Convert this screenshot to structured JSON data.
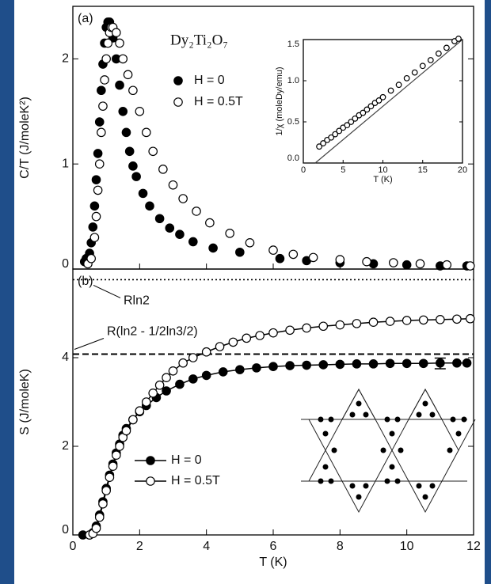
{
  "chart_data": [
    {
      "type": "scatter",
      "panel_label": "(a)",
      "title": "Dy₂Ti₂O₇",
      "ylabel": "C/T (J/moleK²)",
      "xlim": [
        0,
        12
      ],
      "ylim": [
        0,
        2.5
      ],
      "yticks": [
        0,
        1,
        2
      ],
      "series": [
        {
          "name": "H = 0",
          "marker": "filled",
          "color": "#000000",
          "x": [
            0.35,
            0.4,
            0.5,
            0.55,
            0.6,
            0.65,
            0.7,
            0.75,
            0.8,
            0.85,
            0.9,
            0.95,
            1.0,
            1.05,
            1.1,
            1.15,
            1.2,
            1.3,
            1.4,
            1.5,
            1.6,
            1.7,
            1.8,
            1.9,
            2.1,
            2.3,
            2.6,
            2.9,
            3.2,
            3.6,
            4.2,
            5.0,
            6.2,
            7.0,
            8.0,
            9.0,
            10.0,
            11.0,
            11.8
          ],
          "values": [
            0.07,
            0.1,
            0.15,
            0.25,
            0.4,
            0.6,
            0.85,
            1.1,
            1.4,
            1.7,
            1.95,
            2.15,
            2.3,
            2.35,
            2.35,
            2.3,
            2.2,
            2.0,
            1.75,
            1.5,
            1.3,
            1.12,
            0.98,
            0.88,
            0.72,
            0.6,
            0.48,
            0.39,
            0.33,
            0.26,
            0.2,
            0.16,
            0.1,
            0.08,
            0.06,
            0.05,
            0.04,
            0.03,
            0.03
          ]
        },
        {
          "name": "H = 0.5T",
          "marker": "open",
          "color": "#000000",
          "x": [
            0.45,
            0.55,
            0.65,
            0.7,
            0.75,
            0.8,
            0.85,
            0.9,
            0.95,
            1.0,
            1.05,
            1.1,
            1.15,
            1.2,
            1.3,
            1.4,
            1.5,
            1.65,
            1.8,
            2.0,
            2.2,
            2.4,
            2.7,
            3.0,
            3.3,
            3.7,
            4.1,
            4.7,
            5.3,
            6.0,
            6.6,
            7.2,
            8.0,
            8.8,
            9.6,
            10.4,
            11.2,
            11.9
          ],
          "values": [
            0.05,
            0.1,
            0.3,
            0.5,
            0.75,
            1.0,
            1.3,
            1.55,
            1.8,
            2.0,
            2.15,
            2.25,
            2.3,
            2.3,
            2.25,
            2.15,
            2.0,
            1.85,
            1.7,
            1.5,
            1.3,
            1.12,
            0.95,
            0.8,
            0.67,
            0.55,
            0.44,
            0.34,
            0.25,
            0.18,
            0.14,
            0.11,
            0.09,
            0.07,
            0.06,
            0.05,
            0.04,
            0.03
          ]
        }
      ]
    },
    {
      "type": "scatter",
      "panel_label": "(b)",
      "xlabel": "T (K)",
      "ylabel": "S (J/moleK)",
      "lines": true,
      "xlim": [
        0,
        12
      ],
      "xticks": [
        0,
        2,
        4,
        6,
        8,
        10,
        12
      ],
      "ylim": [
        0,
        6
      ],
      "yticks": [
        0,
        2,
        4
      ],
      "hlines": [
        {
          "y": 5.76,
          "style": "dotted",
          "label": "Rln2"
        },
        {
          "y": 4.08,
          "style": "dashed",
          "label": "R(ln2 - 1/2ln3/2)"
        }
      ],
      "error_bar": {
        "x": 11,
        "y": 3.87,
        "error": 0.12
      },
      "series": [
        {
          "name": "H = 0",
          "marker": "filled",
          "color": "#000000",
          "x": [
            0.3,
            0.5,
            0.6,
            0.7,
            0.8,
            0.9,
            1.0,
            1.1,
            1.2,
            1.3,
            1.4,
            1.5,
            1.6,
            1.8,
            2.0,
            2.2,
            2.5,
            2.8,
            3.2,
            3.6,
            4.0,
            4.5,
            5.0,
            5.5,
            6.0,
            6.5,
            7.0,
            7.5,
            8.0,
            8.5,
            9.0,
            9.5,
            10.0,
            10.5,
            11.0,
            11.5,
            11.8
          ],
          "values": [
            0,
            0,
            0.05,
            0.2,
            0.45,
            0.75,
            1.05,
            1.35,
            1.6,
            1.85,
            2.05,
            2.25,
            2.4,
            2.6,
            2.78,
            2.92,
            3.1,
            3.25,
            3.4,
            3.52,
            3.6,
            3.68,
            3.73,
            3.77,
            3.8,
            3.82,
            3.83,
            3.84,
            3.85,
            3.86,
            3.86,
            3.87,
            3.87,
            3.87,
            3.88,
            3.88,
            3.88
          ]
        },
        {
          "name": "H = 0.5T",
          "marker": "open",
          "color": "#000000",
          "x": [
            0.5,
            0.6,
            0.7,
            0.8,
            0.9,
            1.0,
            1.1,
            1.2,
            1.3,
            1.4,
            1.5,
            1.6,
            1.8,
            2.0,
            2.2,
            2.4,
            2.6,
            2.8,
            3.0,
            3.3,
            3.6,
            4.0,
            4.4,
            4.8,
            5.2,
            5.6,
            6.0,
            6.5,
            7.0,
            7.5,
            8.0,
            8.5,
            9.0,
            9.5,
            10.0,
            10.5,
            11.0,
            11.5,
            11.9
          ],
          "values": [
            0,
            0.03,
            0.15,
            0.4,
            0.7,
            1.0,
            1.3,
            1.55,
            1.8,
            2.0,
            2.2,
            2.35,
            2.6,
            2.8,
            3.0,
            3.2,
            3.38,
            3.55,
            3.7,
            3.88,
            4.0,
            4.13,
            4.25,
            4.35,
            4.44,
            4.5,
            4.56,
            4.62,
            4.67,
            4.71,
            4.74,
            4.77,
            4.8,
            4.82,
            4.84,
            4.85,
            4.86,
            4.87,
            4.88
          ]
        }
      ]
    },
    {
      "type": "scatter",
      "xlabel": "T (K)",
      "ylabel": "1/χ (moleDy/emu)",
      "xlim": [
        0,
        20
      ],
      "xticks": [
        0,
        5,
        10,
        15,
        20
      ],
      "ylim": [
        0,
        1.5
      ],
      "yticks": [
        {
          "value": 0,
          "label": "0.0"
        },
        {
          "value": 0.5,
          "label": "0.5"
        },
        {
          "value": 1,
          "label": "1.0"
        },
        {
          "value": 1.5,
          "label": "1.5"
        }
      ],
      "fit": {
        "x": [
          1.5,
          20
        ],
        "values": [
          0,
          1.5
        ]
      },
      "series": [
        {
          "marker": "open",
          "color": "#000000",
          "x": [
            2,
            2.5,
            3,
            3.5,
            4,
            4.5,
            5,
            5.5,
            6,
            6.5,
            7,
            7.5,
            8,
            8.5,
            9,
            9.5,
            10,
            11,
            12,
            13,
            14,
            15,
            16,
            17,
            18,
            19,
            19.5
          ],
          "values": [
            0.2,
            0.24,
            0.28,
            0.31,
            0.35,
            0.39,
            0.43,
            0.46,
            0.5,
            0.54,
            0.58,
            0.61,
            0.65,
            0.69,
            0.73,
            0.76,
            0.8,
            0.88,
            0.95,
            1.03,
            1.1,
            1.18,
            1.25,
            1.33,
            1.4,
            1.48,
            1.51
          ]
        }
      ]
    }
  ]
}
